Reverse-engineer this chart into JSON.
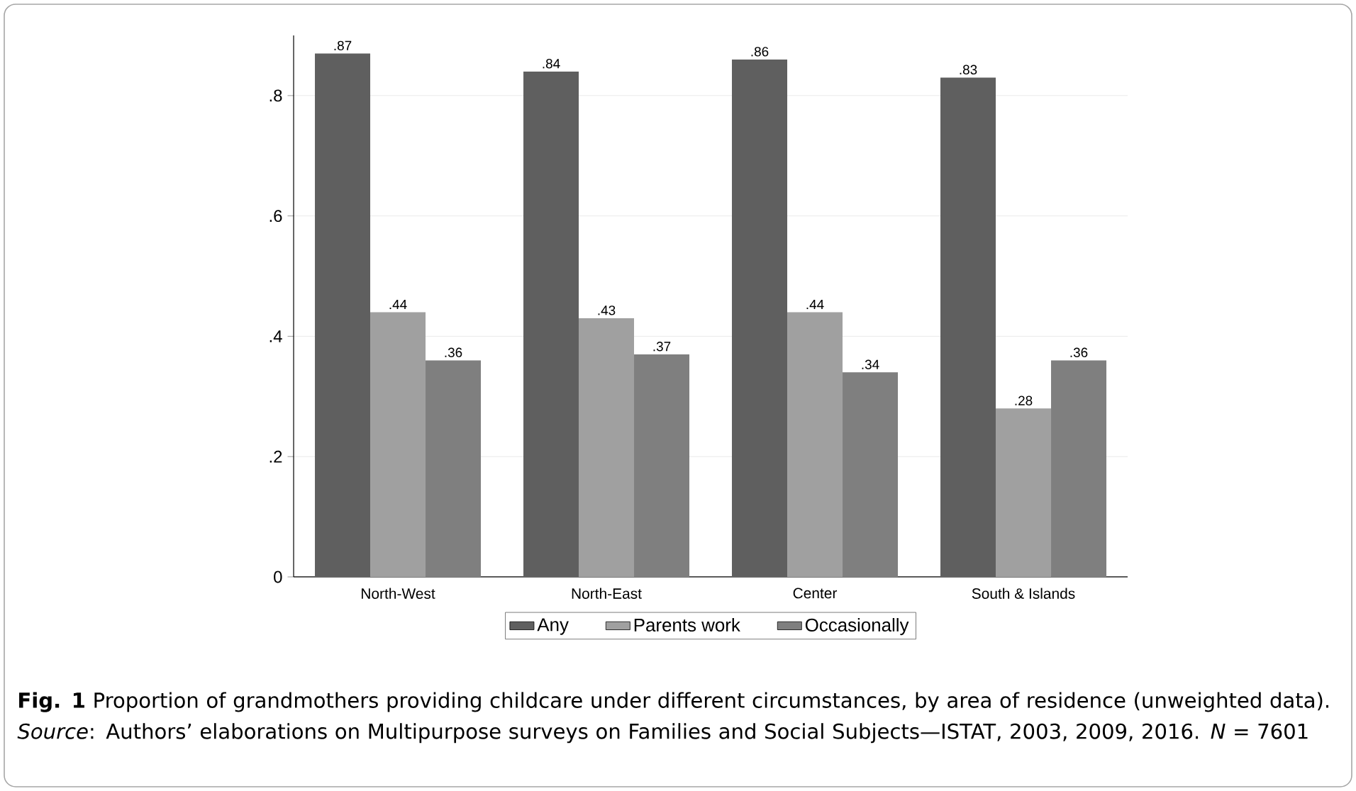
{
  "chart_data": {
    "type": "bar",
    "categories": [
      "North-West",
      "North-East",
      "Center",
      "South & Islands"
    ],
    "series": [
      {
        "name": "Any",
        "color": "#5f5f5f",
        "values": [
          0.87,
          0.84,
          0.86,
          0.83
        ],
        "value_labels": [
          ".87",
          ".84",
          ".86",
          ".83"
        ]
      },
      {
        "name": "Parents work",
        "color": "#a0a0a0",
        "values": [
          0.44,
          0.43,
          0.44,
          0.28
        ],
        "value_labels": [
          ".44",
          ".43",
          ".44",
          ".28"
        ]
      },
      {
        "name": "Occasionally",
        "color": "#7f7f7f",
        "values": [
          0.36,
          0.37,
          0.34,
          0.36
        ],
        "value_labels": [
          ".36",
          ".37",
          ".34",
          ".36"
        ]
      }
    ],
    "ylim": [
      0,
      0.9
    ],
    "yticks": [
      0,
      {
        "value": 0.2,
        "label": ".2"
      },
      {
        "value": 0.4,
        "label": ".4"
      },
      {
        "value": 0.6,
        "label": ".6"
      },
      {
        "value": 0.8,
        "label": ".8"
      }
    ],
    "grid": "y",
    "legend": "bottom",
    "annotations": [
      "**Fig. 1** Proportion of grandmothers providing childcare under different circumstances, by area of residence (unweighted data). *Source*: Authors’ elaborations on Multipurpose surveys on Families and Social Subjects—ISTAT, 2003, 2009, 2016. *N* = 7601"
    ]
  }
}
